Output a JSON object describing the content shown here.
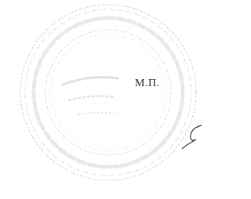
{
  "stamp": {
    "label": "М.П."
  }
}
